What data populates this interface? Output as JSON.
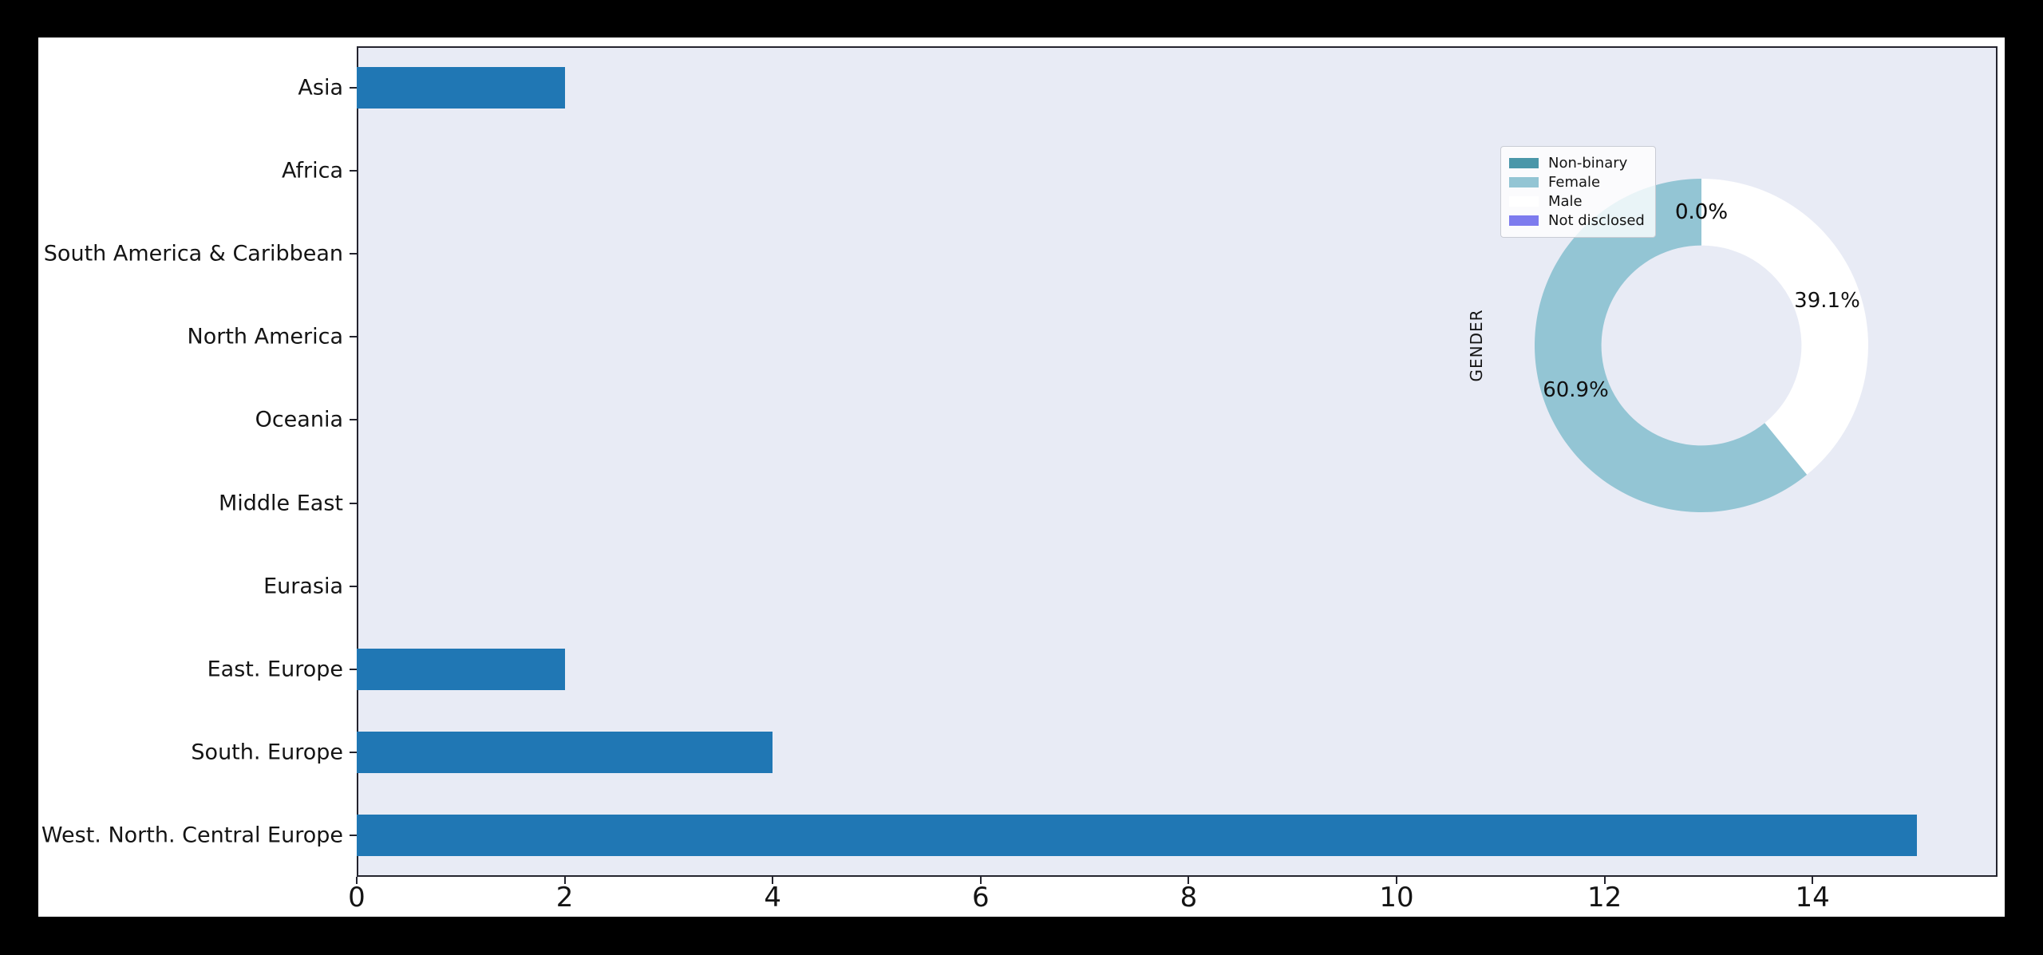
{
  "chart_data": [
    {
      "type": "bar",
      "orientation": "horizontal",
      "title": "",
      "xlabel": "",
      "ylabel": "",
      "categories": [
        "Asia",
        "Africa",
        "South America & Caribbean",
        "North America",
        "Oceania",
        "Middle East",
        "Eurasia",
        "East. Europe",
        "South. Europe",
        "West. North. Central Europe"
      ],
      "values": [
        2,
        0,
        0,
        0,
        0,
        0,
        0,
        2,
        4,
        15
      ],
      "x_ticks": [
        0,
        2,
        4,
        6,
        8,
        10,
        12,
        14
      ],
      "xlim": [
        0,
        15.75
      ],
      "grid": false,
      "bar_color": "#2077b4",
      "plot_bg": "#e8ebf5",
      "axis_color": "#24242e"
    },
    {
      "type": "pie",
      "title": "GENDER",
      "donut_hole": 0.6,
      "start_angle": 90,
      "direction": "counterclockwise",
      "legend_position": "upper left of pie",
      "slices": [
        {
          "label": "Non-binary",
          "pct": 0.0,
          "color": "#4a97a9"
        },
        {
          "label": "Female",
          "pct": 60.9,
          "color": "#93c5d4"
        },
        {
          "label": "Male",
          "pct": 39.1,
          "color": "#ffffff"
        },
        {
          "label": "Not disclosed",
          "pct": 0.0,
          "color": "#7d7bee"
        }
      ]
    }
  ]
}
